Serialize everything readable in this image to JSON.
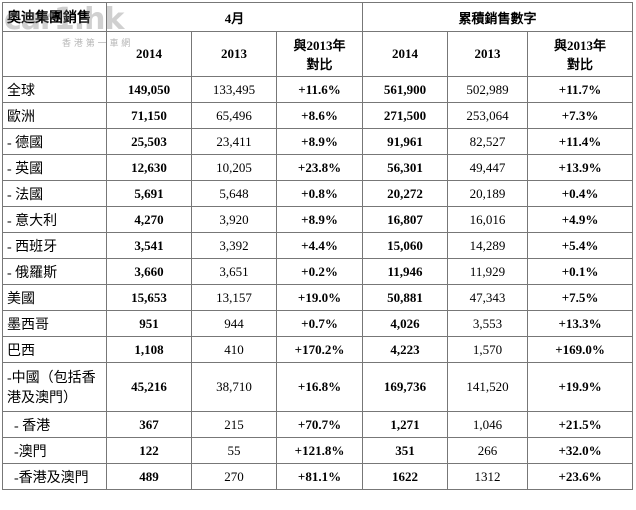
{
  "watermark": {
    "brand": "car1.hk",
    "tagline": "香 港 第 一 車 網"
  },
  "header": {
    "title": "奧迪集團銷售",
    "group1": "4月",
    "group2": "累積銷售數字",
    "columns": [
      "2014",
      "2013",
      [
        "與2013年",
        "對比"
      ],
      "2014",
      "2013",
      [
        "與2013年",
        "對比"
      ]
    ]
  },
  "table": {
    "rows": [
      [
        "全球",
        "149,050",
        "133,495",
        "+11.6%",
        "561,900",
        "502,989",
        "+11.7%"
      ],
      [
        "歐洲",
        "71,150",
        "65,496",
        "+8.6%",
        "271,500",
        "253,064",
        "+7.3%"
      ],
      [
        "- 德國",
        "25,503",
        "23,411",
        "+8.9%",
        "91,961",
        "82,527",
        "+11.4%"
      ],
      [
        "- 英國",
        "12,630",
        "10,205",
        "+23.8%",
        "56,301",
        "49,447",
        "+13.9%"
      ],
      [
        "- 法國",
        "5,691",
        "5,648",
        "+0.8%",
        "20,272",
        "20,189",
        "+0.4%"
      ],
      [
        "- 意大利",
        "4,270",
        "3,920",
        "+8.9%",
        "16,807",
        "16,016",
        "+4.9%"
      ],
      [
        "- 西班牙",
        "3,541",
        "3,392",
        "+4.4%",
        "15,060",
        "14,289",
        "+5.4%"
      ],
      [
        "- 俄羅斯",
        "3,660",
        "3,651",
        "+0.2%",
        "11,946",
        "11,929",
        "+0.1%"
      ],
      [
        "美國",
        "15,653",
        "13,157",
        "+19.0%",
        "50,881",
        "47,343",
        "+7.5%"
      ],
      [
        "墨西哥",
        "951",
        "944",
        "+0.7%",
        "4,026",
        "3,553",
        "+13.3%"
      ],
      [
        "巴西",
        "1,108",
        "410",
        "+170.2%",
        "4,223",
        "1,570",
        "+169.0%"
      ],
      [
        "-中國（包括香港及澳門）",
        "45,216",
        "38,710",
        "+16.8%",
        "169,736",
        "141,520",
        "+19.9%"
      ],
      [
        "  - 香港",
        "367",
        "215",
        "+70.7%",
        "1,271",
        "1,046",
        "+21.5%"
      ],
      [
        "  -澳門",
        "122",
        "55",
        "+121.8%",
        "351",
        "266",
        "+32.0%"
      ],
      [
        "  -香港及澳門",
        "489",
        "270",
        "+81.1%",
        "1622",
        "1312",
        "+23.6%"
      ]
    ]
  }
}
